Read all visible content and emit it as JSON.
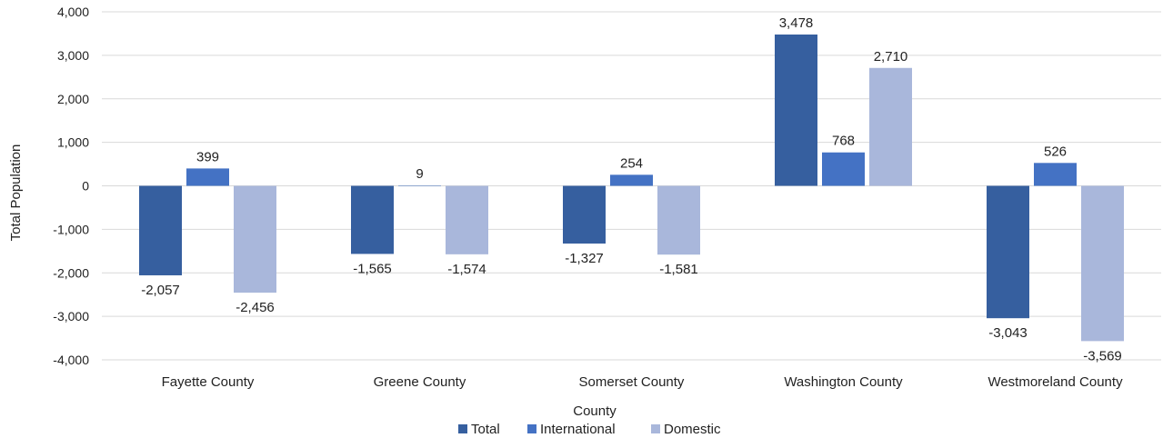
{
  "chart_data": {
    "type": "bar",
    "title": "",
    "xlabel": "County",
    "ylabel": "Total Population",
    "categories": [
      "Fayette County",
      "Greene County",
      "Somerset County",
      "Washington County",
      "Westmoreland County"
    ],
    "series": [
      {
        "name": "Total",
        "color": "#365f9f",
        "values": [
          -2057,
          -1565,
          -1327,
          3478,
          -3043
        ],
        "labels": [
          "-2,057",
          "-1,565",
          "-1,327",
          "3,478",
          "-3,043"
        ]
      },
      {
        "name": "International",
        "color": "#4472c4",
        "values": [
          399,
          9,
          254,
          768,
          526
        ],
        "labels": [
          "399",
          "9",
          "254",
          "768",
          "526"
        ]
      },
      {
        "name": "Domestic",
        "color": "#a9b7db",
        "values": [
          -2456,
          -1574,
          -1581,
          2710,
          -3569
        ],
        "labels": [
          "-2,456",
          "-1,574",
          "-1,581",
          "2,710",
          "-3,569"
        ]
      }
    ],
    "ylim": [
      -4000,
      4000
    ],
    "yticks": [
      4000,
      3000,
      2000,
      1000,
      0,
      -1000,
      -2000,
      -3000,
      -4000
    ],
    "ytick_labels": [
      "4,000",
      "3,000",
      "2,000",
      "1,000",
      "0",
      "-1,000",
      "-2,000",
      "-3,000",
      "-4,000"
    ],
    "grid": true,
    "legend_position": "bottom"
  }
}
